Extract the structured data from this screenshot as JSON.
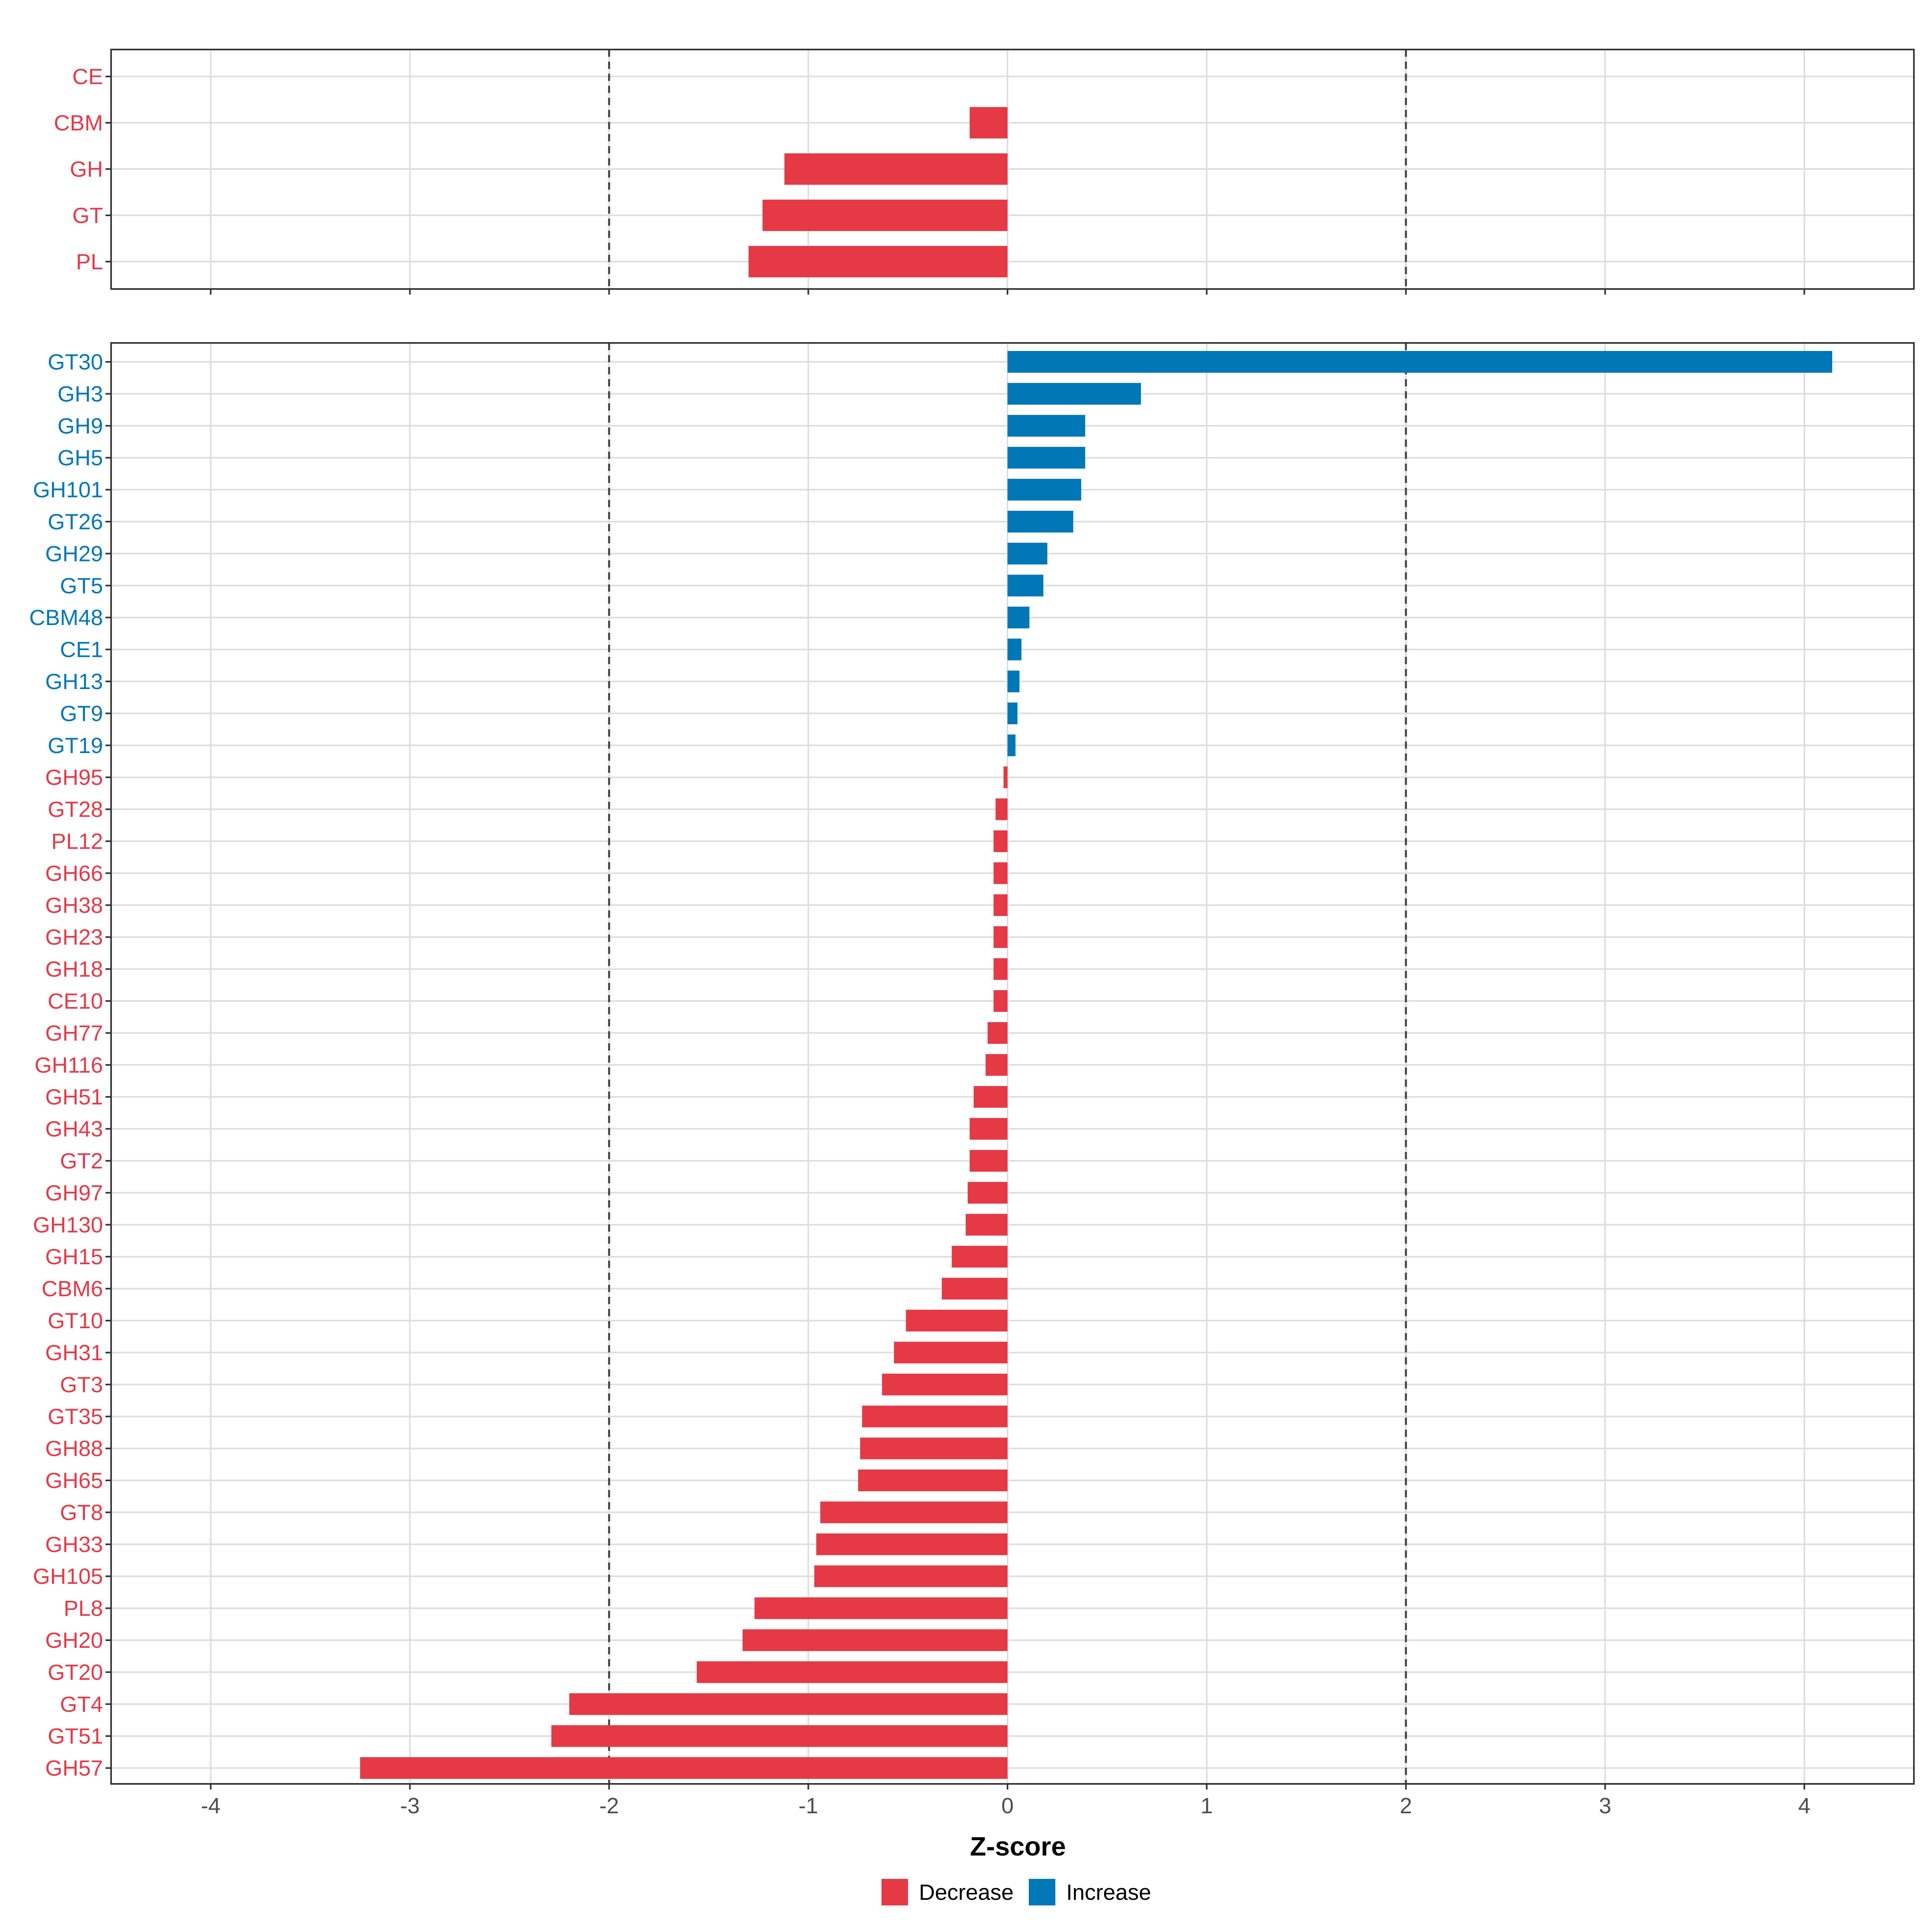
{
  "colors": {
    "decrease": "#E63946",
    "increase": "#0077B6",
    "grid": "#DEDEDE",
    "panel_border": "#333333",
    "threshold_line": "#444444"
  },
  "chart_data": [
    {
      "type": "bar",
      "orientation": "horizontal",
      "panel": "top",
      "categories": [
        "CE",
        "CBM",
        "GH",
        "GT",
        "PL"
      ],
      "values": [
        0.0,
        -0.19,
        -1.12,
        -1.23,
        -1.3
      ],
      "direction": [
        "Decrease",
        "Decrease",
        "Decrease",
        "Decrease",
        "Decrease"
      ],
      "xlim": [
        -4.5,
        4.55
      ],
      "xticks": [
        -4,
        -3,
        -2,
        -1,
        0,
        1,
        2,
        3,
        4
      ],
      "vlines": [
        -2,
        2
      ],
      "grid": true
    },
    {
      "type": "bar",
      "orientation": "horizontal",
      "panel": "bottom",
      "categories": [
        "GT30",
        "GH3",
        "GH9",
        "GH5",
        "GH101",
        "GT26",
        "GH29",
        "GT5",
        "CBM48",
        "CE1",
        "GH13",
        "GT9",
        "GT19",
        "GH95",
        "GT28",
        "PL12",
        "GH66",
        "GH38",
        "GH23",
        "GH18",
        "CE10",
        "GH77",
        "GH116",
        "GH51",
        "GH43",
        "GT2",
        "GH97",
        "GH130",
        "GH15",
        "CBM6",
        "GT10",
        "GH31",
        "GT3",
        "GT35",
        "GH88",
        "GH65",
        "GT8",
        "GH33",
        "GH105",
        "PL8",
        "GH20",
        "GT20",
        "GT4",
        "GT51",
        "GH57"
      ],
      "values": [
        4.14,
        0.67,
        0.39,
        0.39,
        0.37,
        0.33,
        0.2,
        0.18,
        0.11,
        0.07,
        0.06,
        0.05,
        0.04,
        -0.02,
        -0.06,
        -0.07,
        -0.07,
        -0.07,
        -0.07,
        -0.07,
        -0.07,
        -0.1,
        -0.11,
        -0.17,
        -0.19,
        -0.19,
        -0.2,
        -0.21,
        -0.28,
        -0.33,
        -0.51,
        -0.57,
        -0.63,
        -0.73,
        -0.74,
        -0.75,
        -0.94,
        -0.96,
        -0.97,
        -1.27,
        -1.33,
        -1.56,
        -2.2,
        -2.29,
        -3.25
      ],
      "direction": [
        "Increase",
        "Increase",
        "Increase",
        "Increase",
        "Increase",
        "Increase",
        "Increase",
        "Increase",
        "Increase",
        "Increase",
        "Increase",
        "Increase",
        "Increase",
        "Decrease",
        "Decrease",
        "Decrease",
        "Decrease",
        "Decrease",
        "Decrease",
        "Decrease",
        "Decrease",
        "Decrease",
        "Decrease",
        "Decrease",
        "Decrease",
        "Decrease",
        "Decrease",
        "Decrease",
        "Decrease",
        "Decrease",
        "Decrease",
        "Decrease",
        "Decrease",
        "Decrease",
        "Decrease",
        "Decrease",
        "Decrease",
        "Decrease",
        "Decrease",
        "Decrease",
        "Decrease",
        "Decrease",
        "Decrease",
        "Decrease",
        "Decrease"
      ],
      "xlim": [
        -4.5,
        4.55
      ],
      "xticks": [
        -4,
        -3,
        -2,
        -1,
        0,
        1,
        2,
        3,
        4
      ],
      "vlines": [
        -2,
        2
      ],
      "xlabel": "Z-score",
      "grid": true
    }
  ],
  "xtick_labels": [
    "-4",
    "-3",
    "-2",
    "-1",
    "0",
    "1",
    "2",
    "3",
    "4"
  ],
  "xlabel": "Z-score",
  "legend": {
    "position": "bottom",
    "items": [
      {
        "label": "Decrease",
        "color": "#E63946"
      },
      {
        "label": "Increase",
        "color": "#0077B6"
      }
    ]
  }
}
